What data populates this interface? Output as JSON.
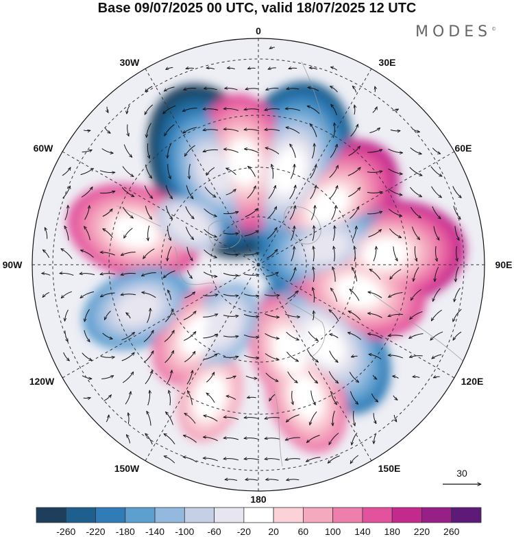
{
  "title": "Base 09/07/2025 00 UTC, valid 18/07/2025 12 UTC",
  "brand": "MODES",
  "brand_mark": "©",
  "longitude_labels": {
    "lon_0": "0",
    "lon_30e": "30E",
    "lon_60e": "60E",
    "lon_90e": "90E",
    "lon_120e": "120E",
    "lon_150e": "150E",
    "lon_180": "180",
    "lon_150w": "150W",
    "lon_120w": "120W",
    "lon_90w": "90W",
    "lon_60w": "60W",
    "lon_30w": "30W"
  },
  "reference_vector": {
    "label": "30"
  },
  "colorbar": {
    "labels": [
      "-260",
      "-220",
      "-180",
      "-140",
      "-100",
      "-60",
      "-20",
      "20",
      "60",
      "100",
      "140",
      "180",
      "220",
      "260"
    ],
    "colors": [
      "#1e3f5c",
      "#1f5f8e",
      "#2f7cb7",
      "#5d9fcf",
      "#93b9df",
      "#c5cfe6",
      "#e7e5f0",
      "#ffffff",
      "#fad2d8",
      "#f4a9bf",
      "#ee7fad",
      "#e2529d",
      "#c42a8e",
      "#962085",
      "#5e1a78"
    ]
  },
  "map": {
    "projection": "north polar stereographic",
    "anomaly_centers": [
      {
        "lon": 50,
        "lat": 45,
        "value": 220
      },
      {
        "lon": 85,
        "lat": 30,
        "value": 200
      },
      {
        "lon": 75,
        "lat": 55,
        "value": -180
      },
      {
        "lon": 18,
        "lat": 42,
        "value": -240
      },
      {
        "lon": -25,
        "lat": 40,
        "value": -260
      },
      {
        "lon": -8,
        "lat": 40,
        "value": 180
      },
      {
        "lon": -75,
        "lat": 30,
        "value": 180
      },
      {
        "lon": -110,
        "lat": 30,
        "value": -140
      },
      {
        "lon": -140,
        "lat": 45,
        "value": 140
      },
      {
        "lon": 160,
        "lat": 45,
        "value": 140
      },
      {
        "lon": 140,
        "lat": 40,
        "value": -200
      },
      {
        "lon": 105,
        "lat": 40,
        "value": 160
      },
      {
        "lon": 160,
        "lat": 25,
        "value": 120
      },
      {
        "lon": -160,
        "lat": 25,
        "value": 100
      },
      {
        "lon": -150,
        "lat": 55,
        "value": -100
      },
      {
        "lon": -60,
        "lat": 50,
        "value": -60
      }
    ]
  }
}
